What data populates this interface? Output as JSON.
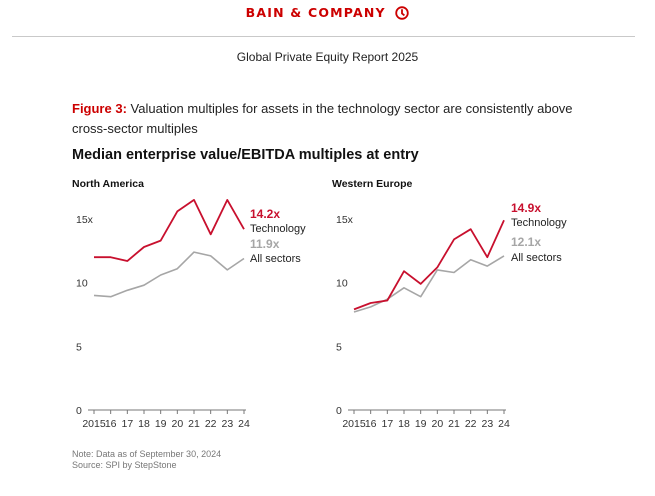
{
  "header": {
    "brand": "BAIN & COMPANY",
    "report_title": "Global Private Equity Report 2025"
  },
  "figure": {
    "label": "Figure 3:",
    "caption": "Valuation multiples for assets in the technology sector are consistently above cross-sector multiples"
  },
  "colors": {
    "brand": "#cc0000",
    "technology": "#c8102e",
    "all_sectors": "#a6a6a6"
  },
  "chart_data": {
    "type": "line",
    "title": "Median enterprise value/EBITDA multiples at entry",
    "x": [
      "2015",
      "16",
      "17",
      "18",
      "19",
      "20",
      "21",
      "22",
      "23",
      "24"
    ],
    "ylim": [
      0,
      16
    ],
    "yticks": [
      "0",
      "5",
      "10",
      "15x"
    ],
    "grid": false,
    "panels": [
      {
        "title": "North America",
        "series": [
          {
            "name": "Technology",
            "end_label": "14.2x",
            "values": [
              12.0,
              12.0,
              11.7,
              12.8,
              13.3,
              15.6,
              16.5,
              13.8,
              16.5,
              14.2
            ]
          },
          {
            "name": "All sectors",
            "end_label": "11.9x",
            "values": [
              9.0,
              8.9,
              9.4,
              9.8,
              10.6,
              11.1,
              12.4,
              12.1,
              11.0,
              11.9
            ]
          }
        ]
      },
      {
        "title": "Western Europe",
        "series": [
          {
            "name": "Technology",
            "end_label": "14.9x",
            "values": [
              7.9,
              8.4,
              8.6,
              10.9,
              9.9,
              11.2,
              13.4,
              14.2,
              12.0,
              14.9
            ]
          },
          {
            "name": "All sectors",
            "end_label": "12.1x",
            "values": [
              7.7,
              8.1,
              8.7,
              9.6,
              8.9,
              11.0,
              10.8,
              11.8,
              11.3,
              12.1
            ]
          }
        ]
      }
    ]
  },
  "notes": {
    "note": "Note: Data as of September 30, 2024",
    "source": "Source: SPI by StepStone"
  }
}
